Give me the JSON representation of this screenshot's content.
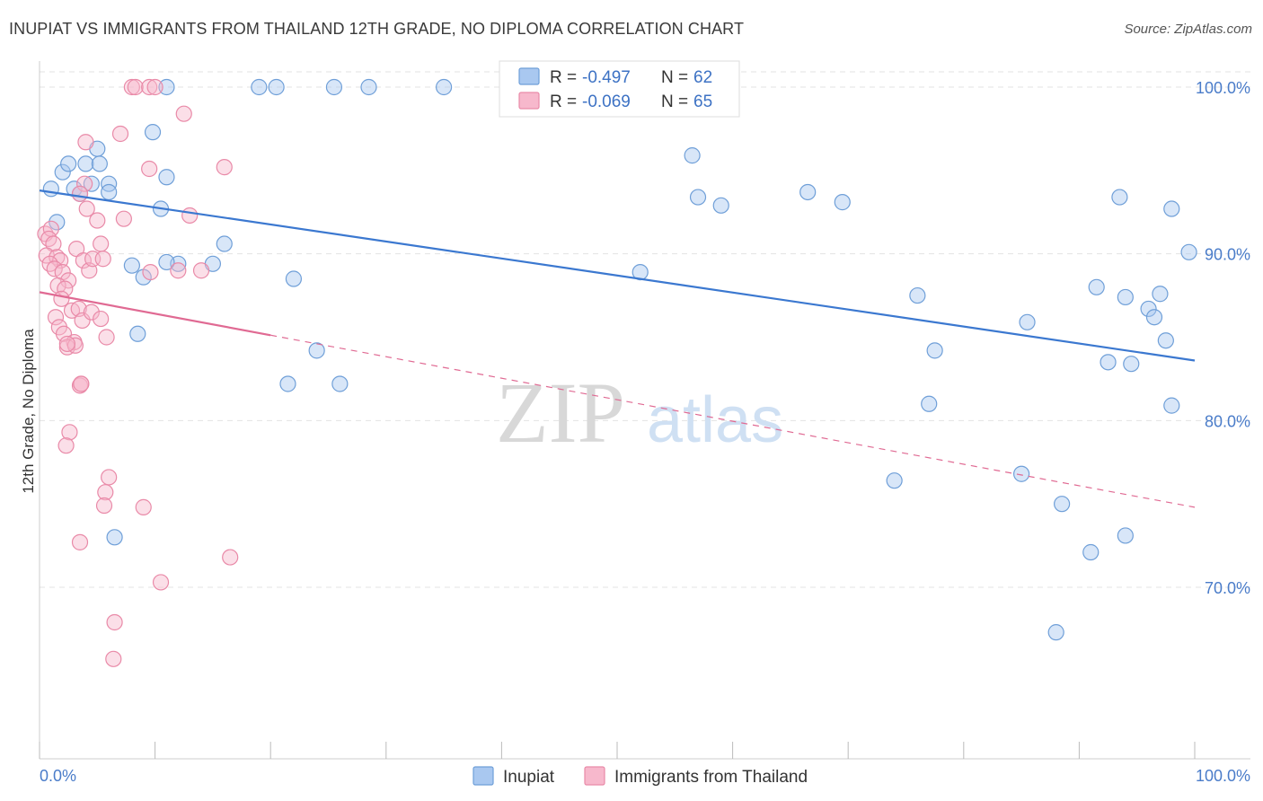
{
  "title": "INUPIAT VS IMMIGRANTS FROM THAILAND 12TH GRADE, NO DIPLOMA CORRELATION CHART",
  "source": "Source: ZipAtlas.com",
  "watermark": {
    "zip": "ZIP",
    "atlas": "atlas"
  },
  "colors": {
    "inupiat_fill": "#a9c8f0",
    "inupiat_stroke": "#6f9fd8",
    "inupiat_line": "#3b78d0",
    "thailand_fill": "#f7b8cc",
    "thailand_stroke": "#e98aa8",
    "thailand_line": "#e06a93",
    "tick_text": "#4a7cc9",
    "grid": "#e3e3e3"
  },
  "legend": {
    "rows": [
      {
        "r_label": "R = ",
        "r_value": "-0.497",
        "n_label": "N = ",
        "n_value": "62"
      },
      {
        "r_label": "R = ",
        "r_value": "-0.069",
        "n_label": "N = ",
        "n_value": "65"
      }
    ]
  },
  "chart_data": {
    "type": "scatter",
    "title": "INUPIAT VS IMMIGRANTS FROM THAILAND 12TH GRADE, NO DIPLOMA CORRELATION CHART",
    "xlabel": "",
    "ylabel": "12th Grade, No Diploma",
    "xlim": [
      0,
      100
    ],
    "ylim": [
      60,
      101.5
    ],
    "x_tick_labels": [
      "0.0%",
      "100.0%"
    ],
    "y_ticks": [
      100,
      90,
      80,
      70
    ],
    "y_tick_labels": [
      "100.0%",
      "90.0%",
      "80.0%",
      "70.0%"
    ],
    "grid": true,
    "legend_position": "top-center",
    "series": [
      {
        "name": "Inupiat",
        "r": -0.497,
        "n": 62,
        "trend": {
          "x": [
            0,
            100
          ],
          "y": [
            93.8,
            83.6
          ],
          "dashed_from": null
        },
        "points": [
          [
            2.0,
            94.9
          ],
          [
            2.5,
            95.4
          ],
          [
            3.0,
            93.9
          ],
          [
            3.5,
            93.6
          ],
          [
            4.5,
            94.2
          ],
          [
            4.0,
            95.4
          ],
          [
            5.0,
            96.3
          ],
          [
            5.2,
            95.4
          ],
          [
            6.0,
            94.2
          ],
          [
            6.0,
            93.7
          ],
          [
            1.0,
            93.9
          ],
          [
            1.5,
            91.9
          ],
          [
            9.8,
            97.3
          ],
          [
            11.0,
            94.6
          ],
          [
            10.5,
            92.7
          ],
          [
            11.0,
            100.0
          ],
          [
            9.0,
            88.6
          ],
          [
            8.0,
            89.3
          ],
          [
            8.5,
            85.2
          ],
          [
            12.0,
            89.4
          ],
          [
            11.0,
            89.5
          ],
          [
            16.0,
            90.6
          ],
          [
            15.0,
            89.4
          ],
          [
            19.0,
            100.0
          ],
          [
            20.5,
            100.0
          ],
          [
            25.5,
            100.0
          ],
          [
            28.5,
            100.0
          ],
          [
            35.0,
            100.0
          ],
          [
            47.0,
            100.0
          ],
          [
            22.0,
            88.5
          ],
          [
            24.0,
            84.2
          ],
          [
            21.5,
            82.2
          ],
          [
            26.0,
            82.2
          ],
          [
            6.5,
            73.0
          ],
          [
            52.0,
            88.9
          ],
          [
            56.5,
            95.9
          ],
          [
            57.0,
            93.4
          ],
          [
            59.0,
            92.9
          ],
          [
            66.5,
            93.7
          ],
          [
            69.5,
            93.1
          ],
          [
            76.0,
            87.5
          ],
          [
            77.5,
            84.2
          ],
          [
            77.0,
            81.0
          ],
          [
            74.0,
            76.4
          ],
          [
            85.5,
            85.9
          ],
          [
            85.0,
            76.8
          ],
          [
            88.5,
            75.0
          ],
          [
            91.5,
            88.0
          ],
          [
            92.5,
            83.5
          ],
          [
            91.0,
            72.1
          ],
          [
            94.0,
            87.4
          ],
          [
            93.5,
            93.4
          ],
          [
            94.5,
            83.4
          ],
          [
            96.0,
            86.7
          ],
          [
            96.5,
            86.2
          ],
          [
            97.0,
            87.6
          ],
          [
            97.5,
            84.8
          ],
          [
            98.0,
            80.9
          ],
          [
            98.0,
            92.7
          ],
          [
            99.5,
            90.1
          ],
          [
            94.0,
            73.1
          ],
          [
            88.0,
            67.3
          ]
        ]
      },
      {
        "name": "Immigrants from Thailand",
        "r": -0.069,
        "n": 65,
        "trend": {
          "x": [
            0,
            100
          ],
          "y": [
            87.7,
            74.8
          ],
          "solid_until_x": 20
        },
        "points": [
          [
            0.5,
            91.2
          ],
          [
            1.0,
            91.5
          ],
          [
            0.8,
            90.9
          ],
          [
            1.2,
            90.6
          ],
          [
            0.6,
            89.9
          ],
          [
            1.5,
            89.8
          ],
          [
            1.8,
            89.6
          ],
          [
            0.9,
            89.4
          ],
          [
            1.3,
            89.1
          ],
          [
            2.0,
            88.9
          ],
          [
            2.5,
            88.4
          ],
          [
            1.6,
            88.1
          ],
          [
            2.2,
            87.9
          ],
          [
            1.9,
            87.3
          ],
          [
            2.8,
            86.6
          ],
          [
            1.4,
            86.2
          ],
          [
            1.7,
            85.6
          ],
          [
            2.1,
            85.2
          ],
          [
            3.0,
            84.7
          ],
          [
            2.4,
            84.4
          ],
          [
            3.1,
            84.5
          ],
          [
            3.5,
            82.1
          ],
          [
            3.6,
            82.2
          ],
          [
            2.6,
            79.3
          ],
          [
            2.3,
            78.5
          ],
          [
            3.2,
            90.3
          ],
          [
            3.8,
            89.6
          ],
          [
            4.3,
            89.0
          ],
          [
            4.6,
            89.7
          ],
          [
            5.5,
            89.7
          ],
          [
            3.4,
            86.7
          ],
          [
            3.7,
            86.0
          ],
          [
            4.5,
            86.5
          ],
          [
            5.3,
            86.1
          ],
          [
            5.8,
            85.0
          ],
          [
            4.0,
            96.7
          ],
          [
            4.1,
            92.7
          ],
          [
            5.0,
            92.0
          ],
          [
            5.3,
            90.6
          ],
          [
            3.9,
            94.2
          ],
          [
            3.5,
            93.6
          ],
          [
            7.0,
            97.2
          ],
          [
            7.3,
            92.1
          ],
          [
            8.0,
            100.0
          ],
          [
            8.3,
            100.0
          ],
          [
            9.5,
            100.0
          ],
          [
            10.0,
            100.0
          ],
          [
            12.5,
            98.4
          ],
          [
            9.5,
            95.1
          ],
          [
            13.0,
            92.3
          ],
          [
            12.0,
            89.0
          ],
          [
            9.6,
            88.9
          ],
          [
            14.0,
            89.0
          ],
          [
            16.0,
            95.2
          ],
          [
            6.0,
            76.6
          ],
          [
            5.7,
            75.7
          ],
          [
            5.6,
            74.9
          ],
          [
            9.0,
            74.8
          ],
          [
            3.5,
            72.7
          ],
          [
            16.5,
            71.8
          ],
          [
            10.5,
            70.3
          ],
          [
            6.5,
            67.9
          ],
          [
            6.4,
            65.7
          ],
          [
            3.6,
            82.2
          ],
          [
            2.4,
            84.6
          ]
        ]
      }
    ]
  },
  "bottom_legend": [
    {
      "label": "Inupiat"
    },
    {
      "label": "Immigrants from Thailand"
    }
  ]
}
